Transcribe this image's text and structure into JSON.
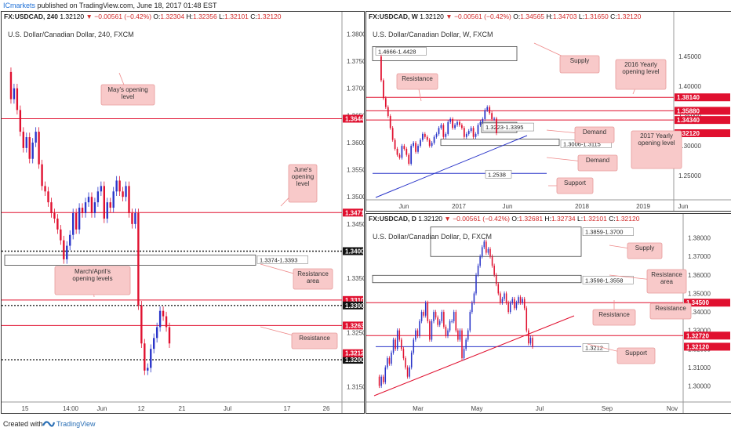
{
  "header": {
    "brand": "ICmarkets",
    "published": "published on TradingView.com, June 18, 2017 01:48 EST"
  },
  "footer": {
    "created_with": "Created with",
    "brand": "TradingView"
  },
  "colors": {
    "up": "#2a35c9",
    "down": "#e0102f",
    "level": "#e0102f",
    "trend": "#2a35c9",
    "box": "#444"
  },
  "chart_data": [
    {
      "id": "h4",
      "type": "candlestick",
      "status": {
        "symbol": "FX:USDCAD, 240",
        "close": "1.32120",
        "change": "−0.00561 (−0.42%)",
        "O": "1.32304",
        "H": "1.32356",
        "L": "1.32101",
        "C": "1.32120"
      },
      "title": "U.S. Dollar/Canadian Dollar, 240, FXCM",
      "ylim": [
        1.3125,
        1.3815
      ],
      "y_ticks": [
        "1.38000",
        "1.37500",
        "1.37000",
        "1.36500",
        "1.36000",
        "1.35500",
        "1.35000",
        "1.34500",
        "1.33500",
        "1.33000",
        "1.32500",
        "1.31500"
      ],
      "x_ticks": [
        "15",
        "14:00",
        "Jun",
        "12",
        "21",
        "Jul",
        "17",
        "26"
      ],
      "levels": [
        {
          "value": "1.36440",
          "y": 1.3644,
          "style": "solid"
        },
        {
          "value": "1.34710",
          "y": 1.3471,
          "style": "solid"
        },
        {
          "value": "1.34000",
          "y": 1.34,
          "style": "dashed"
        },
        {
          "value": "1.33100",
          "y": 1.331,
          "style": "solid"
        },
        {
          "value": "1.33000",
          "y": 1.33,
          "style": "dashed"
        },
        {
          "value": "1.32630",
          "y": 1.3263,
          "style": "solid"
        },
        {
          "value": "1.32000",
          "y": 1.32,
          "style": "dashed"
        }
      ],
      "current": {
        "value": "1.32120",
        "y": 1.3212
      },
      "zones": [
        {
          "label": "1.3374-1.3393",
          "from": 1.3374,
          "to": 1.3393
        }
      ],
      "annotations": [
        "May's opening level",
        "June's opening level",
        "Resistance area",
        "March/April's opening levels",
        "Resistance"
      ],
      "series": [
        1.373,
        1.368,
        1.37,
        1.366,
        1.362,
        1.359,
        1.361,
        1.357,
        1.36,
        1.362,
        1.356,
        1.352,
        1.351,
        1.349,
        1.347,
        1.346,
        1.344,
        1.342,
        1.3385,
        1.341,
        1.343,
        1.347,
        1.344,
        1.348,
        1.347,
        1.349,
        1.35,
        1.347,
        1.349,
        1.351,
        1.352,
        1.346,
        1.349,
        1.348,
        1.351,
        1.353,
        1.351,
        1.35,
        1.352,
        1.347,
        1.345,
        1.347,
        1.33,
        1.323,
        1.318,
        1.3185,
        1.322,
        1.324,
        1.326,
        1.329,
        1.328,
        1.326,
        1.323
      ]
    },
    {
      "id": "w",
      "type": "candlestick",
      "status": {
        "symbol": "FX:USDCAD, W",
        "close": "1.32120",
        "change": "−0.00561 (−0.42%)",
        "O": "1.34565",
        "H": "1.34703",
        "L": "1.31650",
        "C": "1.32120"
      },
      "title": "U.S. Dollar/Canadian Dollar, W, FXCM",
      "ylim": [
        1.22,
        1.475
      ],
      "y_ticks": [
        "1.45000",
        "1.40000",
        "1.35000",
        "1.30000",
        "1.25000"
      ],
      "x_ticks": [
        "Jun",
        "2017",
        "Jun",
        "2018",
        "2019",
        "Jun"
      ],
      "levels": [
        {
          "value": "1.38140",
          "y": 1.3814,
          "style": "solid"
        },
        {
          "value": "1.35880",
          "y": 1.3588,
          "style": "solid"
        },
        {
          "value": "1.34340",
          "y": 1.3434,
          "style": "solid"
        }
      ],
      "current": {
        "value": "1.32120",
        "y": 1.3212
      },
      "zones": [
        {
          "label": "1.4666-1.4428",
          "from": 1.4428,
          "to": 1.4666
        },
        {
          "label": "1.3223-1.3395",
          "from": 1.3223,
          "to": 1.3395
        },
        {
          "label": "1.3006-1.3115",
          "from": 1.3006,
          "to": 1.3115
        },
        {
          "label": "1.2538",
          "from": 1.2538,
          "to": 1.2538
        }
      ],
      "annotations": [
        "Supply",
        "2016 Yearly opening level",
        "Resistance",
        "Demand",
        "2017 Yearly opening level",
        "Demand",
        "Support"
      ],
      "series": [
        1.45,
        1.41,
        1.38,
        1.365,
        1.35,
        1.33,
        1.31,
        1.295,
        1.285,
        1.28,
        1.3,
        1.295,
        1.285,
        1.27,
        1.3,
        1.305,
        1.29,
        1.3,
        1.31,
        1.32,
        1.315,
        1.31,
        1.3,
        1.305,
        1.315,
        1.32,
        1.33,
        1.335,
        1.315,
        1.32,
        1.34,
        1.345,
        1.33,
        1.335,
        1.34,
        1.335,
        1.33,
        1.315,
        1.32,
        1.325,
        1.33,
        1.315,
        1.32,
        1.335,
        1.34,
        1.345,
        1.36,
        1.365,
        1.355,
        1.345,
        1.3457,
        1.3212
      ]
    },
    {
      "id": "d",
      "type": "candlestick",
      "status": {
        "symbol": "FX:USDCAD, D",
        "close": "1.32120",
        "change": "−0.00561 (−0.42%)",
        "O": "1.32681",
        "H": "1.32734",
        "L": "1.32101",
        "C": "1.32120"
      },
      "title": "U.S. Dollar/Canadian Dollar, D, FXCM",
      "ylim": [
        1.293,
        1.3845
      ],
      "y_ticks": [
        "1.38000",
        "1.37000",
        "1.36000",
        "1.35000",
        "1.34000",
        "1.33000",
        "1.32000",
        "1.31000",
        "1.30000"
      ],
      "x_ticks": [
        "Mar",
        "May",
        "Jul",
        "Sep",
        "Nov"
      ],
      "levels": [
        {
          "value": "1.34500",
          "y": 1.345,
          "style": "solid"
        },
        {
          "value": "1.32720",
          "y": 1.3272,
          "style": "solid"
        }
      ],
      "current": {
        "value": "1.32120",
        "y": 1.3212
      },
      "zones": [
        {
          "label": "1.3859-1.3700",
          "from": 1.37,
          "to": 1.3859
        },
        {
          "label": "1.3598-1.3558",
          "from": 1.3558,
          "to": 1.3598
        },
        {
          "label": "1.3212",
          "from": 1.3212,
          "to": 1.3212
        }
      ],
      "annotations": [
        "Supply",
        "Resistance area",
        "Resistance",
        "Resistance",
        "Support"
      ],
      "series": [
        1.305,
        1.3,
        1.305,
        1.302,
        1.31,
        1.315,
        1.312,
        1.318,
        1.325,
        1.32,
        1.33,
        1.325,
        1.32,
        1.315,
        1.31,
        1.305,
        1.31,
        1.318,
        1.325,
        1.33,
        1.327,
        1.335,
        1.34,
        1.338,
        1.345,
        1.335,
        1.325,
        1.335,
        1.34,
        1.337,
        1.333,
        1.335,
        1.34,
        1.332,
        1.327,
        1.33,
        1.335,
        1.335,
        1.34,
        1.33,
        1.325,
        1.33,
        1.315,
        1.32,
        1.325,
        1.33,
        1.34,
        1.345,
        1.35,
        1.36,
        1.365,
        1.37,
        1.375,
        1.378,
        1.372,
        1.374,
        1.37,
        1.365,
        1.36,
        1.355,
        1.35,
        1.345,
        1.347,
        1.35,
        1.345,
        1.34,
        1.345,
        1.347,
        1.342,
        1.345,
        1.348,
        1.345,
        1.347,
        1.342,
        1.33,
        1.323,
        1.326,
        1.3212
      ]
    }
  ]
}
